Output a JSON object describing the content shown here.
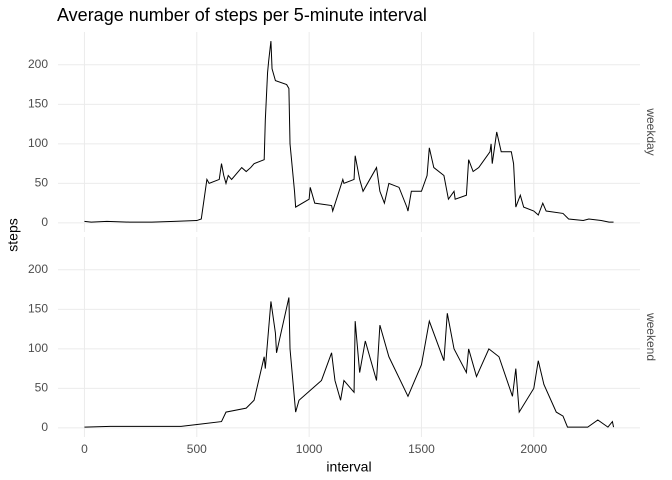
{
  "title": "Average number of steps per 5-minute interval",
  "x_label": "interval",
  "y_label": "steps",
  "chart_data": [
    {
      "type": "line",
      "panel": "weekday",
      "color": "#000000",
      "grid": true,
      "xlim": [
        -117.75,
        2472.75
      ],
      "ylim": [
        -11.5,
        241.5
      ],
      "xticks": [
        0,
        500,
        1000,
        1500,
        2000
      ],
      "yticks": [
        0,
        50,
        100,
        150,
        200
      ],
      "x": [
        0,
        30,
        100,
        200,
        300,
        400,
        500,
        520,
        545,
        555,
        600,
        610,
        620,
        630,
        640,
        655,
        700,
        720,
        740,
        755,
        800,
        805,
        815,
        820,
        830,
        835,
        850,
        900,
        910,
        915,
        920,
        935,
        940,
        1000,
        1005,
        1025,
        1100,
        1105,
        1150,
        1155,
        1200,
        1205,
        1225,
        1240,
        1300,
        1315,
        1335,
        1355,
        1400,
        1435,
        1440,
        1455,
        1500,
        1525,
        1535,
        1555,
        1600,
        1620,
        1645,
        1650,
        1700,
        1710,
        1730,
        1755,
        1805,
        1810,
        1815,
        1835,
        1855,
        1900,
        1910,
        1920,
        1940,
        1955,
        2000,
        2020,
        2040,
        2055,
        2130,
        2155,
        2220,
        2245,
        2300,
        2335,
        2355
      ],
      "values": [
        2,
        1,
        2,
        1,
        1,
        2,
        3,
        5,
        55,
        50,
        55,
        75,
        60,
        50,
        60,
        55,
        70,
        65,
        70,
        75,
        80,
        130,
        190,
        205,
        230,
        195,
        180,
        175,
        170,
        100,
        85,
        40,
        20,
        30,
        45,
        25,
        22,
        15,
        55,
        50,
        55,
        85,
        55,
        40,
        70,
        40,
        25,
        50,
        45,
        20,
        15,
        40,
        40,
        60,
        95,
        70,
        60,
        30,
        40,
        30,
        35,
        80,
        65,
        70,
        90,
        100,
        75,
        115,
        90,
        90,
        75,
        20,
        35,
        20,
        15,
        10,
        25,
        15,
        12,
        5,
        3,
        5,
        3,
        1,
        1
      ]
    },
    {
      "type": "line",
      "panel": "weekend",
      "color": "#000000",
      "grid": true,
      "xlim": [
        -117.75,
        2472.75
      ],
      "ylim": [
        -11.5,
        241.5
      ],
      "xticks": [
        0,
        500,
        1000,
        1500,
        2000
      ],
      "yticks": [
        0,
        50,
        100,
        150,
        200
      ],
      "x": [
        0,
        115,
        430,
        520,
        610,
        630,
        720,
        755,
        800,
        805,
        830,
        850,
        855,
        910,
        915,
        940,
        955,
        1055,
        1100,
        1115,
        1140,
        1155,
        1200,
        1205,
        1225,
        1250,
        1300,
        1315,
        1355,
        1440,
        1500,
        1535,
        1600,
        1615,
        1645,
        1700,
        1710,
        1745,
        1800,
        1845,
        1905,
        1920,
        1935,
        2000,
        2020,
        2045,
        2100,
        2130,
        2150,
        2240,
        2285,
        2330,
        2350,
        2355
      ],
      "values": [
        1,
        2,
        2,
        5,
        8,
        20,
        25,
        35,
        90,
        75,
        160,
        120,
        95,
        165,
        100,
        20,
        35,
        60,
        95,
        60,
        35,
        60,
        45,
        135,
        70,
        110,
        60,
        130,
        90,
        40,
        80,
        135,
        85,
        145,
        100,
        70,
        100,
        65,
        100,
        90,
        40,
        75,
        20,
        50,
        85,
        55,
        20,
        15,
        1,
        1,
        10,
        1,
        8,
        1
      ]
    }
  ]
}
